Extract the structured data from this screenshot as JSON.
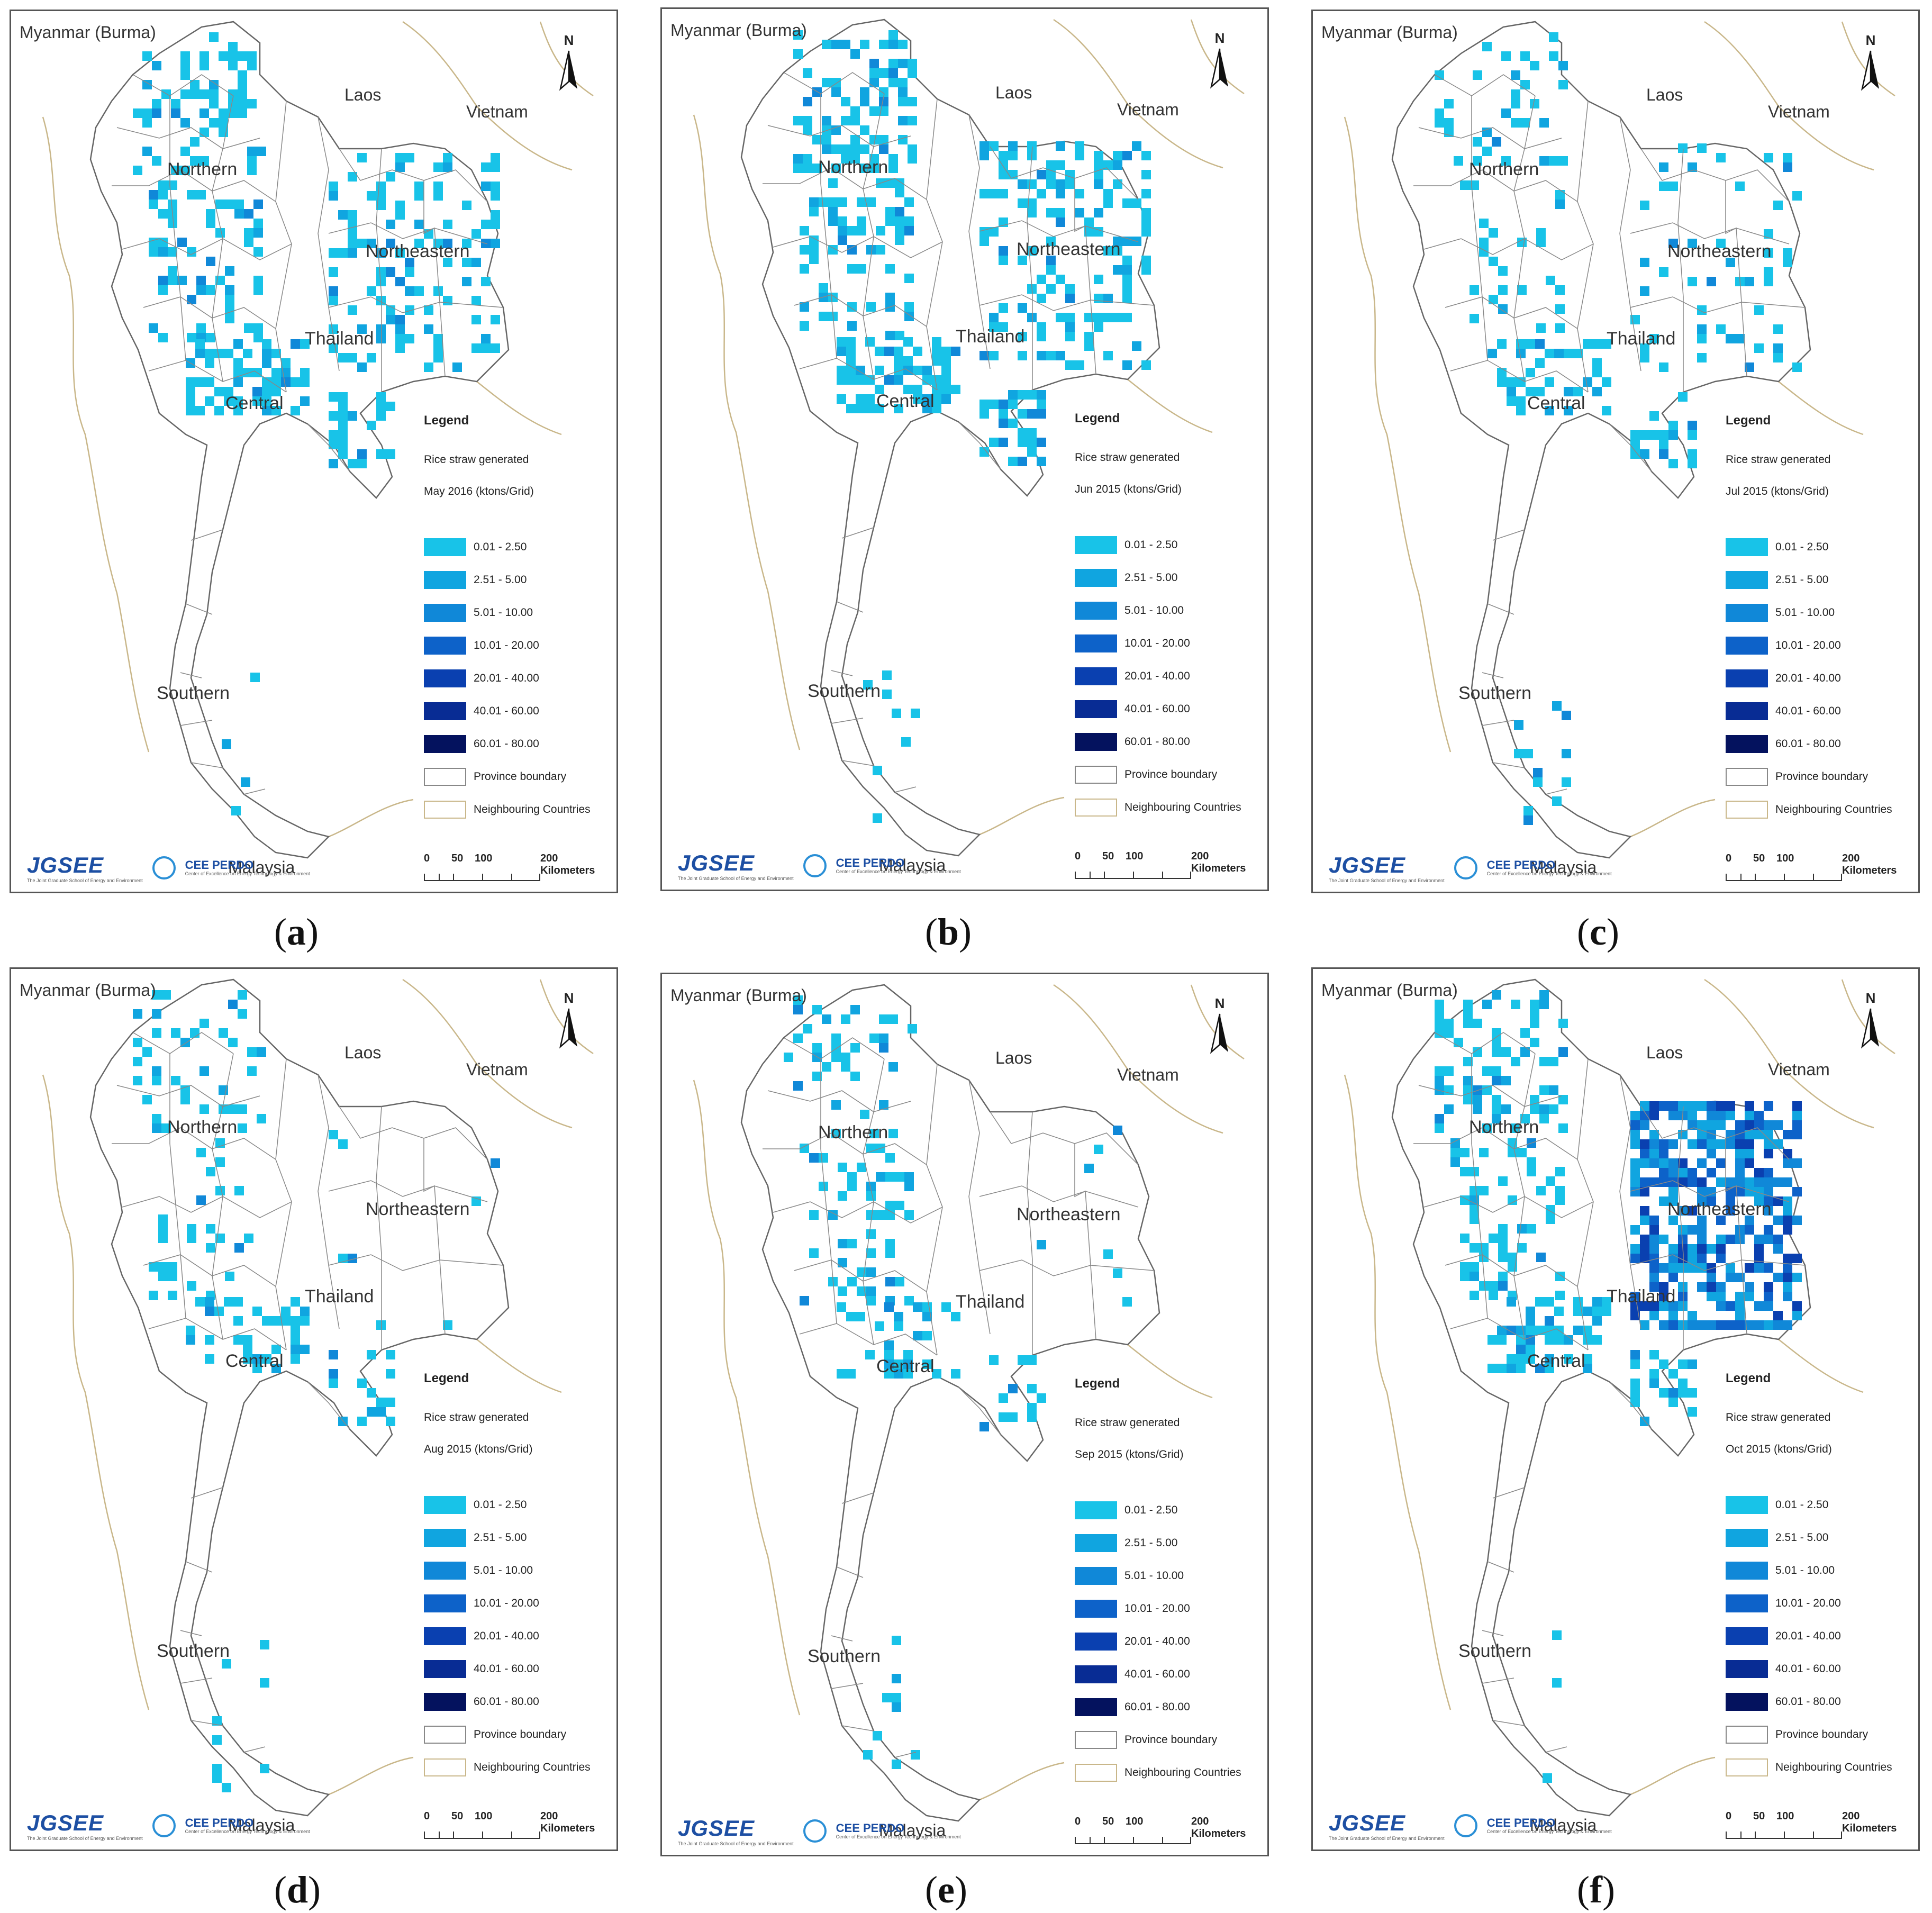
{
  "legend": {
    "title": "Legend",
    "subtitle": "Rice straw generated",
    "classes": [
      {
        "label": "0.01 - 2.50",
        "color": "#18c3e8"
      },
      {
        "label": "2.51 - 5.00",
        "color": "#10a5e0"
      },
      {
        "label": "5.01 - 10.00",
        "color": "#1088d8"
      },
      {
        "label": "10.01 - 20.00",
        "color": "#0d62c9"
      },
      {
        "label": "20.01 - 40.00",
        "color": "#0a40b0"
      },
      {
        "label": "40.01 - 60.00",
        "color": "#082c94"
      },
      {
        "label": "60.01 - 80.00",
        "color": "#04125e"
      }
    ],
    "province_boundary": "Province boundary",
    "neighbouring_countries": "Neighbouring Countries"
  },
  "labels": {
    "myanmar": "Myanmar (Burma)",
    "laos": "Laos",
    "vietnam": "Vietnam",
    "northern": "Northern",
    "northeastern": "Northeastern",
    "thailand": "Thailand",
    "central": "Central",
    "southern": "Southern",
    "malaysia": "Malaysia",
    "north_arrow": "N"
  },
  "scalebar": {
    "ticks": [
      "0",
      "50",
      "100",
      "200 Kilometers"
    ]
  },
  "logos": {
    "jgsee": "JGSEE",
    "jgsee_sub": "The Joint Graduate School of Energy and Environment",
    "cee": "CEE PERDO",
    "cee_sub": "Center of Excellence on Energy Technology & Environment"
  },
  "panels": [
    {
      "caption_letter": "a",
      "period": "May 2016 (ktons/Grid)",
      "activity": {
        "north": 0.55,
        "central": 0.8,
        "northeast": 0.45,
        "south": 0.15
      }
    },
    {
      "caption_letter": "b",
      "period": "Jun 2015 (ktons/Grid)",
      "activity": {
        "north": 0.6,
        "central": 0.85,
        "northeast": 0.6,
        "south": 0.2
      }
    },
    {
      "caption_letter": "c",
      "period": "Jul 2015 (ktons/Grid)",
      "activity": {
        "north": 0.25,
        "central": 0.5,
        "northeast": 0.2,
        "south": 0.2
      }
    },
    {
      "caption_letter": "d",
      "period": "Aug 2015 (ktons/Grid)",
      "activity": {
        "north": 0.3,
        "central": 0.45,
        "northeast": 0.05,
        "south": 0.15
      }
    },
    {
      "caption_letter": "e",
      "period": "Sep 2015 (ktons/Grid)",
      "activity": {
        "north": 0.35,
        "central": 0.55,
        "northeast": 0.02,
        "south": 0.15
      }
    },
    {
      "caption_letter": "f",
      "period": "Oct 2015 (ktons/Grid)",
      "activity": {
        "north": 0.55,
        "central": 0.8,
        "northeast": 1.0,
        "south": 0.2
      }
    }
  ]
}
